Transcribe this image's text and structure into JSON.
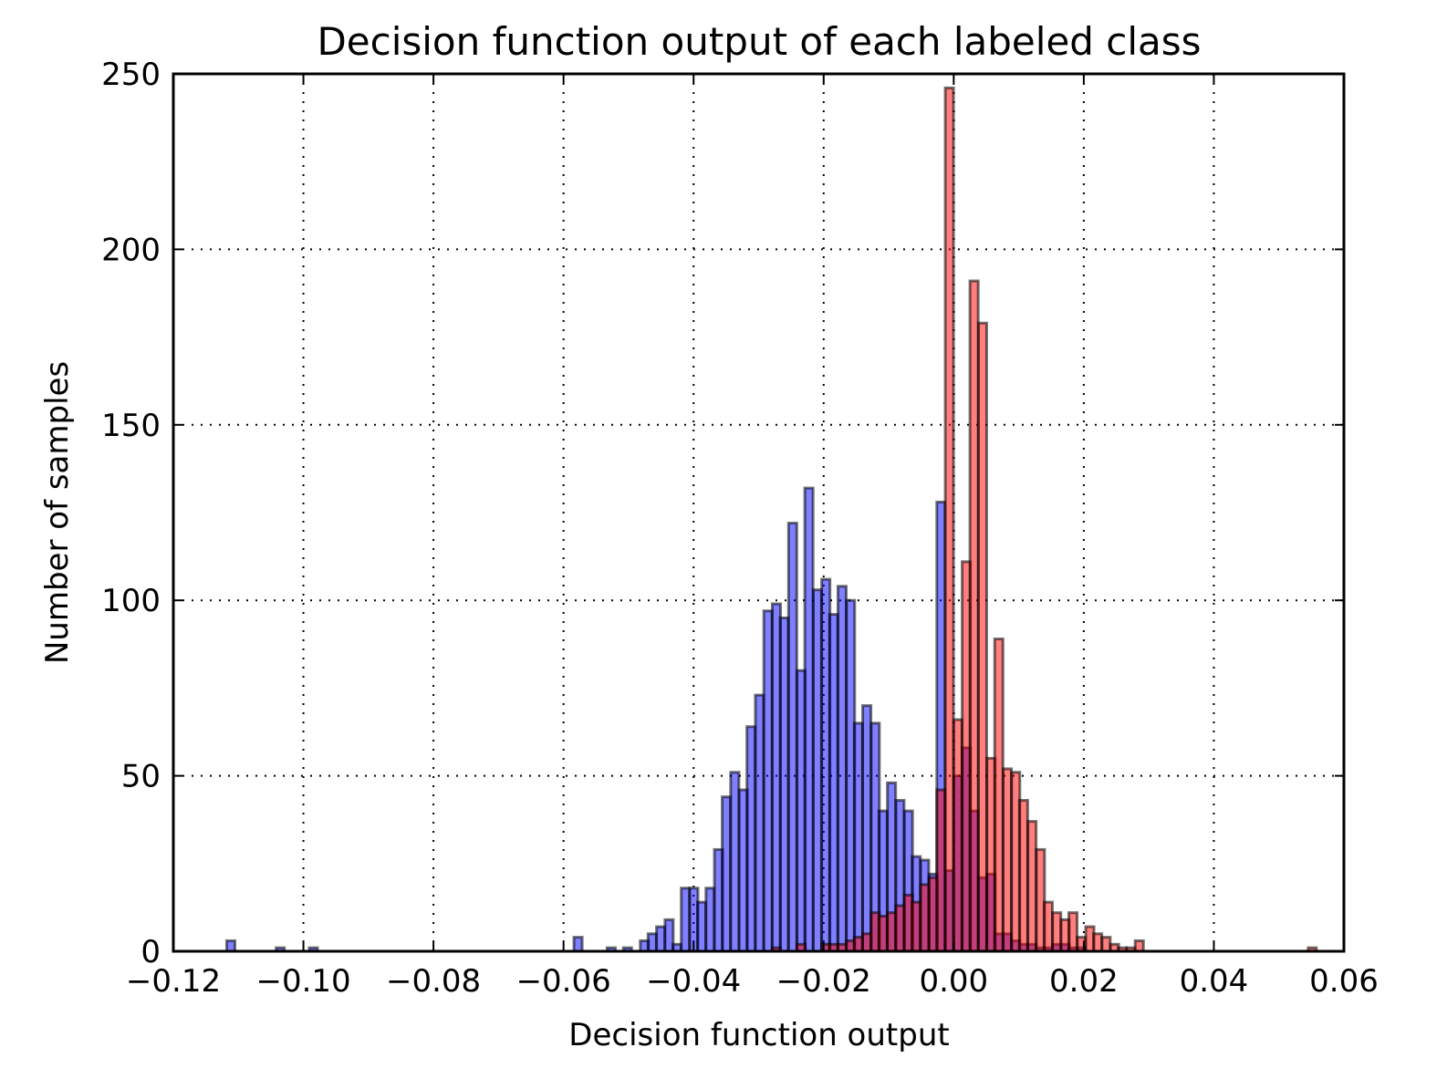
{
  "chart_data": {
    "type": "bar",
    "title": "Decision function output of each labeled class",
    "xlabel": "Decision function output",
    "ylabel": "Number of samples",
    "xlim": [
      -0.12,
      0.06
    ],
    "ylim": [
      0,
      250
    ],
    "grid": true,
    "xticks": [
      -0.12,
      -0.1,
      -0.08,
      -0.06,
      -0.04,
      -0.02,
      0.0,
      0.02,
      0.04,
      0.06
    ],
    "xtick_labels": [
      "−0.12",
      "−0.10",
      "−0.08",
      "−0.06",
      "−0.04",
      "−0.02",
      "0.00",
      "0.02",
      "0.04",
      "0.06"
    ],
    "yticks": [
      0,
      50,
      100,
      150,
      200,
      250
    ],
    "ytick_labels": [
      "0",
      "50",
      "100",
      "150",
      "200",
      "250"
    ],
    "bin_width": 0.00127,
    "series": [
      {
        "color": "#0000ff",
        "opacity": 0.5,
        "bins": [
          [
            -0.1118,
            3
          ],
          [
            -0.1042,
            1
          ],
          [
            -0.0991,
            1
          ],
          [
            -0.0584,
            4
          ],
          [
            -0.0533,
            1
          ],
          [
            -0.0508,
            1
          ],
          [
            -0.0482,
            3
          ],
          [
            -0.047,
            5
          ],
          [
            -0.0457,
            7
          ],
          [
            -0.0444,
            9
          ],
          [
            -0.0432,
            2
          ],
          [
            -0.0419,
            18
          ],
          [
            -0.0406,
            18
          ],
          [
            -0.0394,
            14
          ],
          [
            -0.0381,
            18
          ],
          [
            -0.0368,
            29
          ],
          [
            -0.0356,
            44
          ],
          [
            -0.0343,
            51
          ],
          [
            -0.033,
            46
          ],
          [
            -0.0318,
            64
          ],
          [
            -0.0305,
            73
          ],
          [
            -0.0292,
            97
          ],
          [
            -0.0279,
            99
          ],
          [
            -0.0267,
            95
          ],
          [
            -0.0254,
            122
          ],
          [
            -0.0241,
            80
          ],
          [
            -0.0229,
            132
          ],
          [
            -0.0216,
            103
          ],
          [
            -0.0203,
            106
          ],
          [
            -0.0191,
            96
          ],
          [
            -0.0178,
            104
          ],
          [
            -0.0165,
            100
          ],
          [
            -0.0153,
            65
          ],
          [
            -0.014,
            70
          ],
          [
            -0.0127,
            65
          ],
          [
            -0.0115,
            40
          ],
          [
            -0.0102,
            48
          ],
          [
            -0.0089,
            43
          ],
          [
            -0.0076,
            40
          ],
          [
            -0.0064,
            27
          ],
          [
            -0.0051,
            26
          ],
          [
            -0.0038,
            22
          ],
          [
            -0.0026,
            128
          ],
          [
            -0.0013,
            23
          ],
          [
            0.0,
            50
          ],
          [
            0.0013,
            58
          ],
          [
            0.0025,
            40
          ],
          [
            0.0038,
            21
          ],
          [
            0.0051,
            22
          ],
          [
            0.0063,
            5
          ],
          [
            0.0076,
            5
          ],
          [
            0.0089,
            3
          ],
          [
            0.0101,
            2
          ],
          [
            0.0114,
            2
          ],
          [
            0.0127,
            1
          ],
          [
            0.0139,
            1
          ],
          [
            0.0152,
            2
          ],
          [
            0.0165,
            2
          ],
          [
            0.0177,
            1
          ],
          [
            0.019,
            1
          ]
        ]
      },
      {
        "color": "#ff0000",
        "opacity": 0.5,
        "bins": [
          [
            -0.0279,
            1
          ],
          [
            -0.0241,
            2
          ],
          [
            -0.0203,
            2
          ],
          [
            -0.0191,
            2
          ],
          [
            -0.0178,
            2
          ],
          [
            -0.0165,
            3
          ],
          [
            -0.0153,
            4
          ],
          [
            -0.014,
            5
          ],
          [
            -0.0127,
            11
          ],
          [
            -0.0115,
            10
          ],
          [
            -0.0102,
            11
          ],
          [
            -0.0089,
            13
          ],
          [
            -0.0076,
            16
          ],
          [
            -0.0064,
            14
          ],
          [
            -0.0051,
            19
          ],
          [
            -0.0038,
            21
          ],
          [
            -0.0026,
            46
          ],
          [
            -0.0013,
            246
          ],
          [
            0.0,
            66
          ],
          [
            0.0013,
            111
          ],
          [
            0.0025,
            191
          ],
          [
            0.0038,
            179
          ],
          [
            0.0051,
            55
          ],
          [
            0.0063,
            89
          ],
          [
            0.0076,
            52
          ],
          [
            0.0089,
            51
          ],
          [
            0.0101,
            43
          ],
          [
            0.0114,
            37
          ],
          [
            0.0127,
            29
          ],
          [
            0.0139,
            14
          ],
          [
            0.0152,
            11
          ],
          [
            0.0165,
            9
          ],
          [
            0.0177,
            11
          ],
          [
            0.019,
            4
          ],
          [
            0.0203,
            7
          ],
          [
            0.0215,
            5
          ],
          [
            0.0228,
            4
          ],
          [
            0.0241,
            2
          ],
          [
            0.0253,
            1
          ],
          [
            0.0266,
            1
          ],
          [
            0.0279,
            3
          ],
          [
            0.0545,
            1
          ]
        ]
      }
    ]
  }
}
